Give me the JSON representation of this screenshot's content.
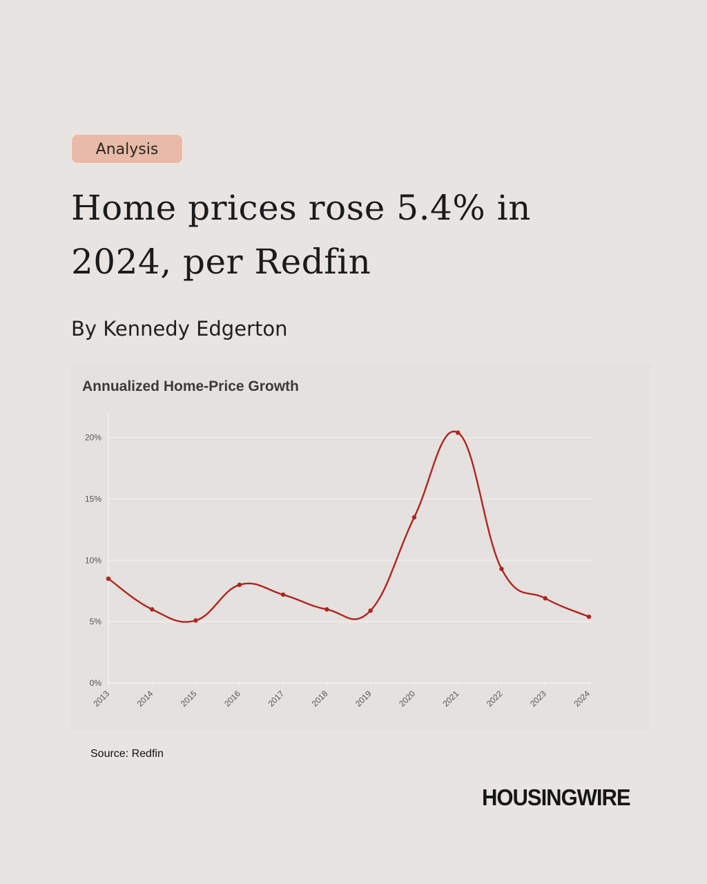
{
  "badge": "Analysis",
  "headline": "Home prices rose 5.4% in 2024, per Redfin",
  "byline": "By Kennedy Edgerton",
  "source": "Source: Redfin",
  "brand": "HOUSINGWIRE",
  "colors": {
    "background": "#e7e4e1",
    "badge": "#e7bba7",
    "line": "#b0231f"
  },
  "chart_data": {
    "type": "line",
    "title": "Annualized Home-Price Growth",
    "xlabel": "",
    "ylabel": "",
    "categories": [
      "2013",
      "2014",
      "2015",
      "2016",
      "2017",
      "2018",
      "2019",
      "2020",
      "2021",
      "2022",
      "2023",
      "2024"
    ],
    "series": [
      {
        "values": [
          8.5,
          6.0,
          5.1,
          8.0,
          7.2,
          6.0,
          5.9,
          13.5,
          20.4,
          9.3,
          6.9,
          5.4
        ]
      }
    ],
    "ylim": [
      0,
      22
    ],
    "yticks": [
      0,
      5,
      10,
      15,
      20
    ],
    "ytick_labels": [
      "0%",
      "5%",
      "10%",
      "15%",
      "20%"
    ],
    "grid": "horizontal",
    "line_color": "#b0231f"
  }
}
